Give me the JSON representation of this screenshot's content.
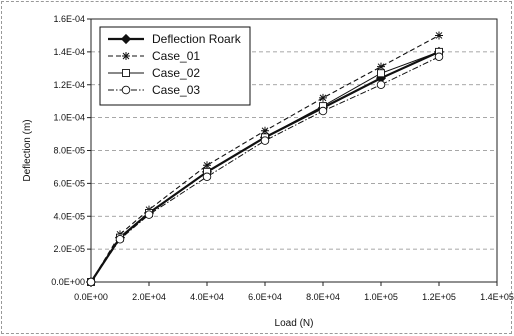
{
  "chart_data": {
    "type": "line",
    "xlabel": "Load (N)",
    "ylabel": "Deflection (m)",
    "xlim": [
      0,
      140000
    ],
    "ylim": [
      0,
      0.00016
    ],
    "grid": "horizontal dashed",
    "legend_position": "top-left",
    "x_ticks": [
      "0.0E+00",
      "2.0E+04",
      "4.0E+04",
      "6.0E+04",
      "8.0E+04",
      "1.0E+05",
      "1.2E+05",
      "1.4E+05"
    ],
    "y_ticks": [
      "0.0E+00",
      "2.0E-05",
      "4.0E-05",
      "6.0E-05",
      "8.0E-05",
      "1.0E-04",
      "1.2E-04",
      "1.4E-04",
      "1.6E-04"
    ],
    "x": [
      0,
      10000,
      20000,
      40000,
      60000,
      80000,
      100000,
      120000
    ],
    "series": [
      {
        "name": "Deflection Roark",
        "marker": "diamond",
        "dash": "solid",
        "values": [
          0,
          2.7e-05,
          4.2e-05,
          6.7e-05,
          8.8e-05,
          0.000106,
          0.000124,
          0.00014
        ]
      },
      {
        "name": "Case_01",
        "marker": "asterisk",
        "dash": "dashed",
        "values": [
          0,
          2.9e-05,
          4.4e-05,
          7.1e-05,
          9.2e-05,
          0.000112,
          0.000131,
          0.00015
        ]
      },
      {
        "name": "Case_02",
        "marker": "square",
        "dash": "solid-thin",
        "values": [
          0,
          2.7e-05,
          4.2e-05,
          6.7e-05,
          8.8e-05,
          0.000107,
          0.000127,
          0.00014
        ]
      },
      {
        "name": "Case_03",
        "marker": "circle",
        "dash": "dash-dot",
        "values": [
          0,
          2.6e-05,
          4.1e-05,
          6.4e-05,
          8.6e-05,
          0.000104,
          0.00012,
          0.000137
        ]
      }
    ]
  }
}
